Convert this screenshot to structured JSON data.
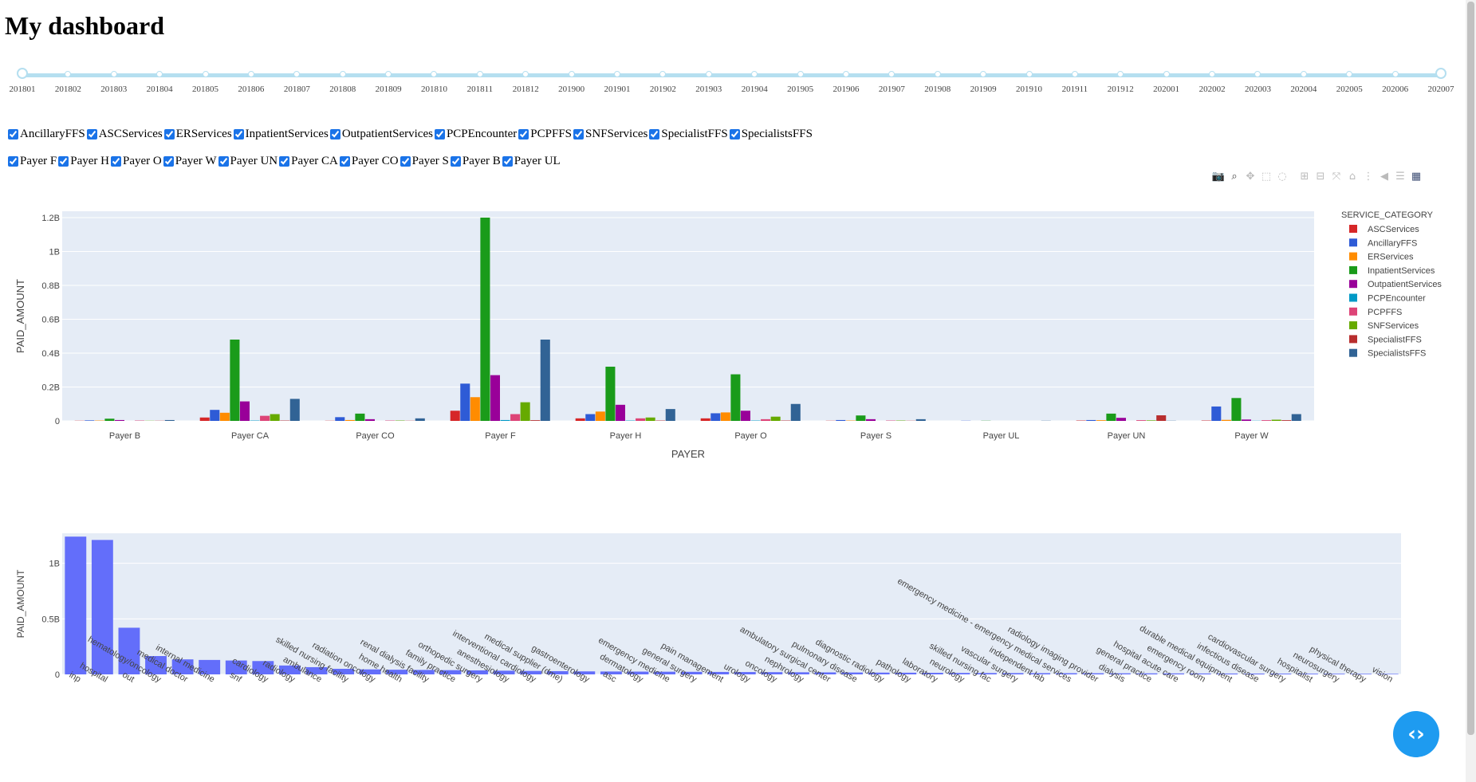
{
  "title": "My dashboard",
  "slider": {
    "marks": [
      "201801",
      "201802",
      "201803",
      "201804",
      "201805",
      "201806",
      "201807",
      "201808",
      "201809",
      "201810",
      "201811",
      "201812",
      "201900",
      "201901",
      "201902",
      "201903",
      "201904",
      "201905",
      "201906",
      "201907",
      "201908",
      "201909",
      "201910",
      "201911",
      "201912",
      "202001",
      "202002",
      "202003",
      "202004",
      "202005",
      "202006",
      "202007"
    ],
    "selected_start": "201801",
    "selected_end": "202007"
  },
  "service_filters": [
    {
      "label": "AncillaryFFS",
      "checked": true
    },
    {
      "label": "ASCServices",
      "checked": true
    },
    {
      "label": "ERServices",
      "checked": true
    },
    {
      "label": "InpatientServices",
      "checked": true
    },
    {
      "label": "OutpatientServices",
      "checked": true
    },
    {
      "label": "PCPEncounter",
      "checked": true
    },
    {
      "label": "PCPFFS",
      "checked": true
    },
    {
      "label": "SNFServices",
      "checked": true
    },
    {
      "label": "SpecialistFFS",
      "checked": true
    },
    {
      "label": "SpecialistsFFS",
      "checked": true
    }
  ],
  "payer_filters": [
    {
      "label": "Payer F",
      "checked": true
    },
    {
      "label": "Payer H",
      "checked": true
    },
    {
      "label": "Payer O",
      "checked": true
    },
    {
      "label": "Payer W",
      "checked": true
    },
    {
      "label": "Payer UN",
      "checked": true
    },
    {
      "label": "Payer CA",
      "checked": true
    },
    {
      "label": "Payer CO",
      "checked": true
    },
    {
      "label": "Payer S",
      "checked": true
    },
    {
      "label": "Payer B",
      "checked": true
    },
    {
      "label": "Payer UL",
      "checked": true
    }
  ],
  "modebar_icons": [
    "camera-icon",
    "zoom-icon",
    "pan-icon",
    "box-select-icon",
    "lasso-icon",
    "zoom-in-icon",
    "zoom-out-icon",
    "autoscale-icon",
    "reset-axes-icon",
    "spike-lines-icon",
    "hover-closest-icon",
    "hover-compare-icon",
    "plotly-logo-icon"
  ],
  "chart_data": [
    {
      "type": "bar",
      "xlabel": "PAYER",
      "ylabel": "PAID_AMOUNT",
      "ylim": [
        0,
        1200000000.0
      ],
      "yticks": [
        "0",
        "0.2B",
        "0.4B",
        "0.6B",
        "0.8B",
        "1B",
        "1.2B"
      ],
      "ytick_values": [
        0,
        200000000.0,
        400000000.0,
        600000000.0,
        800000000.0,
        1000000000.0,
        1200000000.0
      ],
      "legend_title": "SERVICE_CATEGORY",
      "legend_position": "right",
      "grid": true,
      "categories": [
        "Payer B",
        "Payer CA",
        "Payer CO",
        "Payer F",
        "Payer H",
        "Payer O",
        "Payer S",
        "Payer UL",
        "Payer UN",
        "Payer W"
      ],
      "series": [
        {
          "name": "ASCServices",
          "color": "#d62728",
          "values": [
            1000000.0,
            20000000.0,
            1000000.0,
            60000000.0,
            15000000.0,
            15000000.0,
            1000000.0,
            0,
            2000000.0,
            2000000.0
          ]
        },
        {
          "name": "AncillaryFFS",
          "color": "#2e5bd6",
          "values": [
            3000000.0,
            65000000.0,
            22000000.0,
            220000000.0,
            40000000.0,
            45000000.0,
            5000000.0,
            1000000.0,
            5000000.0,
            85000000.0
          ]
        },
        {
          "name": "ERServices",
          "color": "#ff8c00",
          "values": [
            2000000.0,
            48000000.0,
            5000000.0,
            140000000.0,
            55000000.0,
            50000000.0,
            2000000.0,
            0,
            4000000.0,
            6000000.0
          ]
        },
        {
          "name": "InpatientServices",
          "color": "#1a9b1a",
          "values": [
            13000000.0,
            480000000.0,
            43000000.0,
            1200000000.0,
            320000000.0,
            275000000.0,
            32000000.0,
            1000000.0,
            43000000.0,
            135000000.0
          ]
        },
        {
          "name": "OutpatientServices",
          "color": "#990099",
          "values": [
            5000000.0,
            115000000.0,
            10000000.0,
            270000000.0,
            95000000.0,
            60000000.0,
            10000000.0,
            0,
            18000000.0,
            8000000.0
          ]
        },
        {
          "name": "PCPEncounter",
          "color": "#0099c6",
          "values": [
            0,
            2000000.0,
            0,
            5000000.0,
            2000000.0,
            2000000.0,
            0,
            0,
            0,
            1000000.0
          ]
        },
        {
          "name": "PCPFFS",
          "color": "#dd4477",
          "values": [
            2000000.0,
            30000000.0,
            2000000.0,
            40000000.0,
            15000000.0,
            10000000.0,
            2000000.0,
            0,
            4000000.0,
            4000000.0
          ]
        },
        {
          "name": "SNFServices",
          "color": "#66aa00",
          "values": [
            1000000.0,
            40000000.0,
            2000000.0,
            110000000.0,
            20000000.0,
            25000000.0,
            2000000.0,
            0,
            3000000.0,
            7000000.0
          ]
        },
        {
          "name": "SpecialistFFS",
          "color": "#b82e2e",
          "values": [
            1000000.0,
            2000000.0,
            1000000.0,
            4000000.0,
            2000000.0,
            2000000.0,
            1000000.0,
            0,
            33000000.0,
            4000000.0
          ]
        },
        {
          "name": "SpecialistsFFS",
          "color": "#316395",
          "values": [
            5000000.0,
            130000000.0,
            15000000.0,
            480000000.0,
            70000000.0,
            100000000.0,
            10000000.0,
            1000000.0,
            1000000.0,
            40000000.0
          ]
        }
      ]
    },
    {
      "type": "bar",
      "xlabel": "",
      "ylabel": "PAID_AMOUNT",
      "ylim": [
        0,
        1270000000.0
      ],
      "yticks": [
        "0",
        "0.5B",
        "1B"
      ],
      "ytick_values": [
        0,
        500000000.0,
        1000000000.0
      ],
      "grid": true,
      "color": "#636efa",
      "categories": [
        "inp",
        "hospital",
        "out",
        "hematology/oncology",
        "medical doctor",
        "internal medicine",
        "snf",
        "cardiology",
        "radiology",
        "ambulance",
        "skilled nursing facility",
        "radiation oncology",
        "home health",
        "renal dialysis facility",
        "family practice",
        "orthopedic surgery",
        "anesthesiology",
        "interventional cardiology",
        "medical supplier (dme)",
        "gastroenterology",
        "asc",
        "dermatology",
        "emergency medicine",
        "general surgery",
        "pain management",
        "urology",
        "oncology",
        "nephrology",
        "ambulatory surgical center",
        "pulmonary disease",
        "diagnostic radiology",
        "pathology",
        "laboratory",
        "neurology",
        "skilled nursing fac",
        "vascular surgery",
        "independent lab",
        "emergency medicine - emergency medical services",
        "radiology imaging provider",
        "dialysis",
        "general practice",
        "hospital acute care",
        "emergency room",
        "durable medical equipment",
        "infectious disease",
        "cardiovascular surgery",
        "hospitalist",
        "neurosurgery",
        "physical therapy",
        "vision"
      ],
      "values": [
        1240000000.0,
        1210000000.0,
        420000000.0,
        165000000.0,
        135000000.0,
        130000000.0,
        125000000.0,
        120000000.0,
        80000000.0,
        65000000.0,
        50000000.0,
        45000000.0,
        42000000.0,
        40000000.0,
        38000000.0,
        36000000.0,
        33000000.0,
        31000000.0,
        29000000.0,
        27000000.0,
        26000000.0,
        25000000.0,
        24000000.0,
        23000000.0,
        22000000.0,
        21000000.0,
        20000000.0,
        19000000.0,
        18000000.0,
        17000000.0,
        16000000.0,
        15000000.0,
        14000000.0,
        13000000.0,
        12000000.0,
        11500000.0,
        11000000.0,
        10500000.0,
        10000000.0,
        9500000.0,
        9000000.0,
        8500000.0,
        8000000.0,
        7500000.0,
        7000000.0,
        6500000.0,
        6000000.0,
        5500000.0,
        5000000.0,
        4500000.0
      ]
    }
  ]
}
